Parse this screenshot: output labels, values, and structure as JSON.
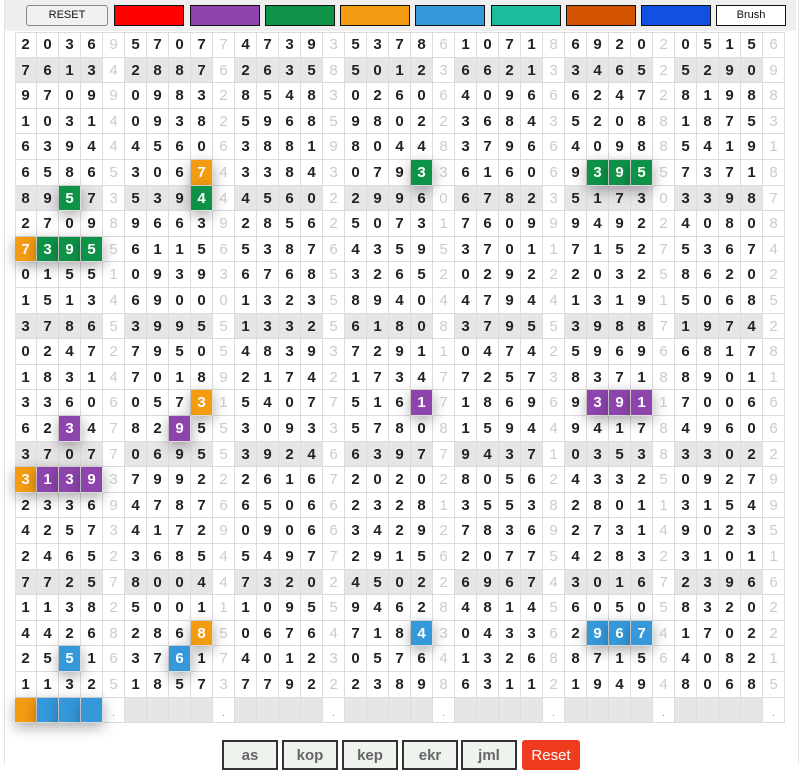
{
  "toolbar": {
    "reset_label": "RESET",
    "brush_label": "Brush",
    "swatches": [
      {
        "name": "red",
        "color": "#ff0000"
      },
      {
        "name": "purple",
        "color": "#8e44ad"
      },
      {
        "name": "green",
        "color": "#0e9247"
      },
      {
        "name": "orange",
        "color": "#f39c12"
      },
      {
        "name": "blue",
        "color": "#3498db"
      },
      {
        "name": "teal",
        "color": "#1abc9c"
      },
      {
        "name": "dark-orange",
        "color": "#d35400"
      },
      {
        "name": "dark-blue",
        "color": "#1150e0"
      }
    ]
  },
  "grid": {
    "rows": [
      "20369570774739353786107186920205156",
      "76134288762635850123662133465252909",
      "97099098328548302606409666247281988",
      "10314093825968598022368435208818753",
      "63944456063881980448379664098854191",
      "65865306743384307933616069395573718",
      "89573539444560229960678235173033987",
      "27098966392856250731760999492240808",
      "73955611565387643595370117152753674",
      "01551093936768532652029222032586202",
      "15134690001323589404479441319150685",
      "37865399551332561808379553988719742",
      "02472795054839372911047425969668178",
      "18314701892174217347725738371889011",
      "33606057315407751617186969391170066",
      "62347829553093357808159449417849606",
      "37077069553924663977943710353833022",
      "31393799222616720202805624332509279",
      "23369478766506623281355382801131549",
      "42573417290906634292783692731490235",
      "24652368545497729156207754283231011",
      "77257800447320245022696743016723966",
      "11382500111095594628481456050583202",
      "44268286850676471843043362967417022",
      "25516376174012305764132688715640821",
      "11325185737792223898631121949480685"
    ],
    "shaded_rows": [
      2,
      7,
      12,
      17,
      22
    ],
    "highlights": [
      {
        "row": 6,
        "col": 9,
        "color": "#f39c12"
      },
      {
        "row": 6,
        "col": 19,
        "color": "#0e9247"
      },
      {
        "row": 6,
        "col": 27,
        "color": "#0e9247"
      },
      {
        "row": 6,
        "col": 28,
        "color": "#0e9247"
      },
      {
        "row": 6,
        "col": 29,
        "color": "#0e9247"
      },
      {
        "row": 7,
        "col": 3,
        "color": "#0e9247"
      },
      {
        "row": 7,
        "col": 9,
        "color": "#0e9247"
      },
      {
        "row": 9,
        "col": 1,
        "color": "#f39c12"
      },
      {
        "row": 9,
        "col": 2,
        "color": "#0e9247"
      },
      {
        "row": 9,
        "col": 3,
        "color": "#0e9247"
      },
      {
        "row": 9,
        "col": 4,
        "color": "#0e9247"
      },
      {
        "row": 15,
        "col": 9,
        "color": "#f39c12"
      },
      {
        "row": 15,
        "col": 19,
        "color": "#8e44ad"
      },
      {
        "row": 15,
        "col": 27,
        "color": "#8e44ad"
      },
      {
        "row": 15,
        "col": 28,
        "color": "#8e44ad"
      },
      {
        "row": 15,
        "col": 29,
        "color": "#8e44ad"
      },
      {
        "row": 16,
        "col": 3,
        "color": "#8e44ad"
      },
      {
        "row": 16,
        "col": 8,
        "color": "#8e44ad"
      },
      {
        "row": 18,
        "col": 1,
        "color": "#f39c12"
      },
      {
        "row": 18,
        "col": 2,
        "color": "#8e44ad"
      },
      {
        "row": 18,
        "col": 3,
        "color": "#8e44ad"
      },
      {
        "row": 18,
        "col": 4,
        "color": "#8e44ad"
      },
      {
        "row": 24,
        "col": 9,
        "color": "#f39c12"
      },
      {
        "row": 24,
        "col": 19,
        "color": "#3498db"
      },
      {
        "row": 24,
        "col": 27,
        "color": "#3498db"
      },
      {
        "row": 24,
        "col": 28,
        "color": "#3498db"
      },
      {
        "row": 24,
        "col": 29,
        "color": "#3498db"
      },
      {
        "row": 25,
        "col": 3,
        "color": "#3498db"
      },
      {
        "row": 25,
        "col": 8,
        "color": "#3498db"
      }
    ],
    "result_row": {
      "filled": [
        "#f39c12",
        "#3498db",
        "#3498db",
        "#3498db"
      ],
      "separator_mark": "."
    }
  },
  "bottom_buttons": [
    "as",
    "kop",
    "kep",
    "ekr",
    "jml"
  ],
  "reset_button": "Reset"
}
